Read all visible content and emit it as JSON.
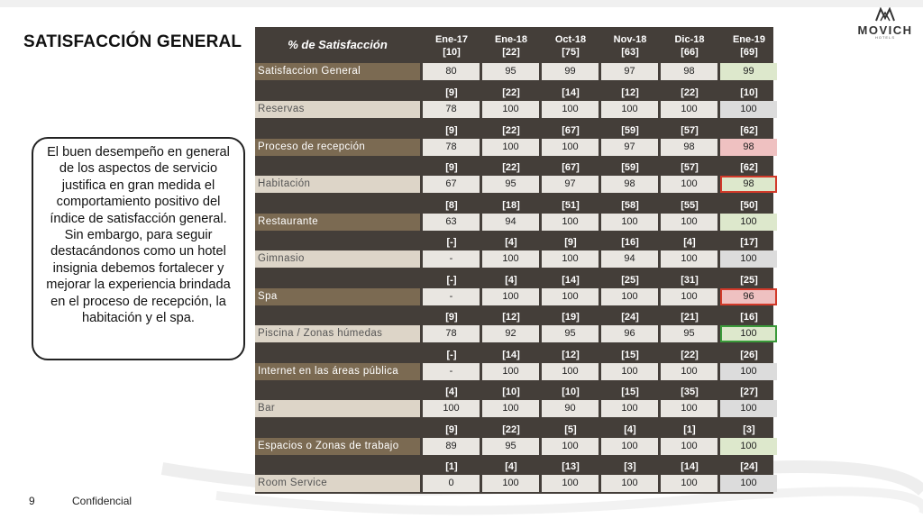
{
  "title": "SATISFACCIÓN GENERAL",
  "logo": {
    "name": "MOVICH",
    "sub": "HOTELS"
  },
  "callout": "El buen desempeño en general de los aspectos de servicio justifica en gran medida el comportamiento positivo del índice de satisfacción general. Sin embargo, para seguir destacándonos como un hotel insignia debemos fortalecer y mejorar la experiencia brindada en el proceso de recepción, la habitación y el spa.",
  "footer": {
    "page": "9",
    "label": "Confidencial"
  },
  "table": {
    "header_label": "% de Satisfacción",
    "columns": [
      {
        "period": "Ene-17",
        "n": "[10]"
      },
      {
        "period": "Ene-18",
        "n": "[22]"
      },
      {
        "period": "Oct-18",
        "n": "[75]"
      },
      {
        "period": "Nov-18",
        "n": "[63]"
      },
      {
        "period": "Dic-18",
        "n": "[66]"
      },
      {
        "period": "Ene-19",
        "n": "[69]"
      }
    ],
    "rows": [
      {
        "label": "Satisfaccion General",
        "label_style": "gold",
        "counts": null,
        "values": [
          "80",
          "95",
          "99",
          "97",
          "98",
          "99"
        ],
        "last_highlight": "green",
        "last_border": "none"
      },
      {
        "label": "Reservas",
        "label_style": "cream",
        "counts": [
          "[9]",
          "[22]",
          "[14]",
          "[12]",
          "[22]",
          "[10]"
        ],
        "values": [
          "78",
          "100",
          "100",
          "100",
          "100",
          "100"
        ],
        "last_highlight": "gray",
        "last_border": "none"
      },
      {
        "label": "Proceso de recepción",
        "label_style": "gold",
        "counts": [
          "[9]",
          "[22]",
          "[67]",
          "[59]",
          "[57]",
          "[62]"
        ],
        "values": [
          "78",
          "100",
          "100",
          "97",
          "98",
          "98"
        ],
        "last_highlight": "pink",
        "last_border": "none"
      },
      {
        "label": "Habitación",
        "label_style": "cream",
        "counts": [
          "[9]",
          "[22]",
          "[67]",
          "[59]",
          "[57]",
          "[62]"
        ],
        "values": [
          "67",
          "95",
          "97",
          "98",
          "100",
          "98"
        ],
        "last_highlight": "green",
        "last_border": "red"
      },
      {
        "label": "Restaurante",
        "label_style": "gold",
        "counts": [
          "[8]",
          "[18]",
          "[51]",
          "[58]",
          "[55]",
          "[50]"
        ],
        "values": [
          "63",
          "94",
          "100",
          "100",
          "100",
          "100"
        ],
        "last_highlight": "green",
        "last_border": "none"
      },
      {
        "label": "Gimnasio",
        "label_style": "cream",
        "counts": [
          "[-]",
          "[4]",
          "[9]",
          "[16]",
          "[4]",
          "[17]"
        ],
        "values": [
          "-",
          "100",
          "100",
          "94",
          "100",
          "100"
        ],
        "last_highlight": "gray",
        "last_border": "none"
      },
      {
        "label": "Spa",
        "label_style": "gold",
        "counts": [
          "[-]",
          "[4]",
          "[14]",
          "[25]",
          "[31]",
          "[25]"
        ],
        "values": [
          "-",
          "100",
          "100",
          "100",
          "100",
          "96"
        ],
        "last_highlight": "pink",
        "last_border": "red"
      },
      {
        "label": "Piscina / Zonas húmedas",
        "label_style": "cream",
        "counts": [
          "[9]",
          "[12]",
          "[19]",
          "[24]",
          "[21]",
          "[16]"
        ],
        "values": [
          "78",
          "92",
          "95",
          "96",
          "95",
          "100"
        ],
        "last_highlight": "green",
        "last_border": "green"
      },
      {
        "label": "Internet en las áreas pública",
        "label_style": "gold",
        "counts": [
          "[-]",
          "[14]",
          "[12]",
          "[15]",
          "[22]",
          "[26]"
        ],
        "values": [
          "-",
          "100",
          "100",
          "100",
          "100",
          "100"
        ],
        "last_highlight": "gray",
        "last_border": "none"
      },
      {
        "label": "Bar",
        "label_style": "cream",
        "counts": [
          "[4]",
          "[10]",
          "[10]",
          "[15]",
          "[35]",
          "[27]"
        ],
        "values": [
          "100",
          "100",
          "90",
          "100",
          "100",
          "100"
        ],
        "last_highlight": "gray",
        "last_border": "none"
      },
      {
        "label": "Espacios o Zonas de trabajo",
        "label_style": "gold",
        "counts": [
          "[9]",
          "[22]",
          "[5]",
          "[4]",
          "[1]",
          "[3]"
        ],
        "values": [
          "89",
          "95",
          "100",
          "100",
          "100",
          "100"
        ],
        "last_highlight": "green",
        "last_border": "none"
      },
      {
        "label": "Room Service",
        "label_style": "cream",
        "counts": [
          "[1]",
          "[4]",
          "[13]",
          "[3]",
          "[14]",
          "[24]"
        ],
        "values": [
          "0",
          "100",
          "100",
          "100",
          "100",
          "100"
        ],
        "last_highlight": "gray",
        "last_border": "none"
      }
    ]
  }
}
